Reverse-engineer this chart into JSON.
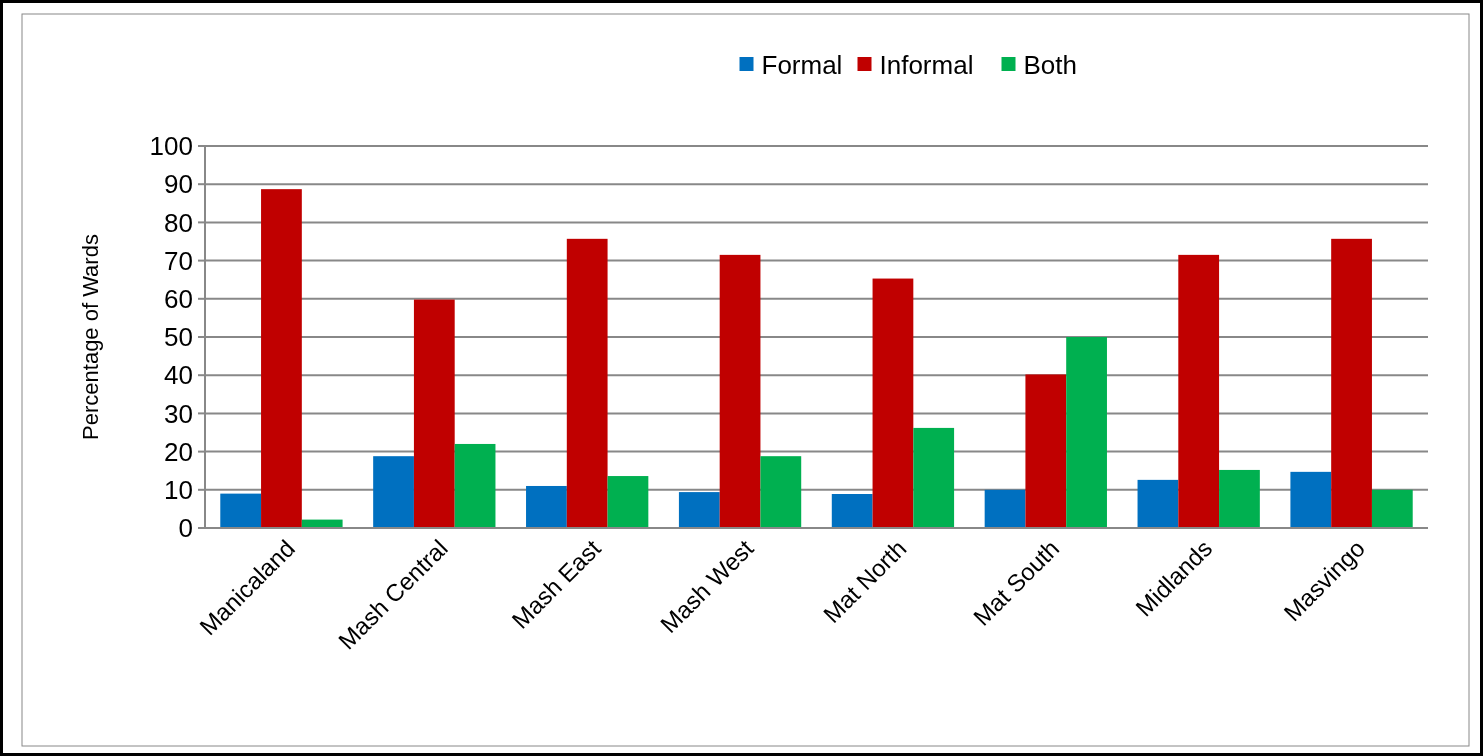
{
  "chart_data": {
    "type": "bar",
    "ylabel": "Percentage of Wards",
    "categories": [
      "Manicaland",
      "Mash Central",
      "Mash East",
      "Mash West",
      "Mat North",
      "Mat South",
      "Midlands",
      "Masvingo"
    ],
    "series": [
      {
        "name": "Formal",
        "color": "#0070c0",
        "values": [
          9,
          18.8,
          11,
          9.4,
          8.9,
          10,
          12.6,
          14.7
        ]
      },
      {
        "name": "Informal",
        "color": "#c00000",
        "values": [
          88.7,
          59.8,
          75.7,
          71.5,
          65.3,
          40.2,
          71.5,
          75.7
        ]
      },
      {
        "name": "Both",
        "color": "#00b050",
        "values": [
          2.2,
          22,
          13.6,
          18.8,
          26.2,
          50,
          15.2,
          10
        ]
      }
    ],
    "ylim": [
      0,
      100
    ],
    "yticks": [
      0,
      10,
      20,
      30,
      40,
      50,
      60,
      70,
      80,
      90,
      100
    ],
    "grid": "y",
    "legend": "top"
  }
}
